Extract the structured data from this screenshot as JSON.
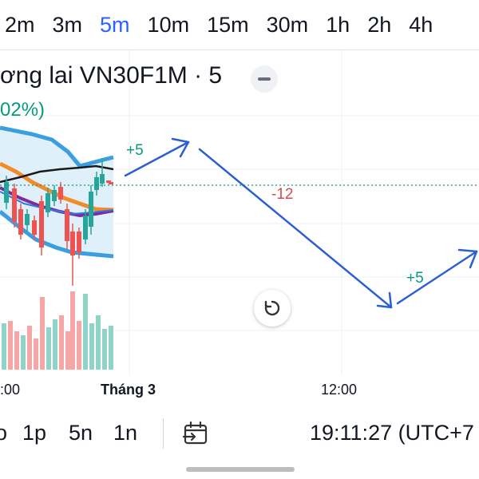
{
  "intervals": {
    "items": [
      "2m",
      "3m",
      "5m",
      "10m",
      "15m",
      "30m",
      "1h",
      "2h",
      "4h"
    ],
    "active": "5m"
  },
  "legend": {
    "title": "ơng lai VN30F1M · 5",
    "change": "02%)"
  },
  "annotations": {
    "up1": "+5",
    "down": "-12",
    "up2": "+5"
  },
  "time_axis": {
    "left": ":00",
    "month": "Tháng 3",
    "noon": "12:00"
  },
  "bottom_bar": {
    "ranges": [
      "o",
      "1p",
      "5n",
      "1n"
    ],
    "clock": "19:11:27 (UTC+7"
  },
  "colors": {
    "accent": "#2962ff",
    "up": "#26a69a",
    "down": "#ef5350",
    "annotation_arrow": "#2d5fd3",
    "bollinger": "#3a9ee0"
  },
  "icons": {
    "collapse": "minus-icon",
    "reset": "reset-icon",
    "goto": "calendar-goto-icon"
  }
}
